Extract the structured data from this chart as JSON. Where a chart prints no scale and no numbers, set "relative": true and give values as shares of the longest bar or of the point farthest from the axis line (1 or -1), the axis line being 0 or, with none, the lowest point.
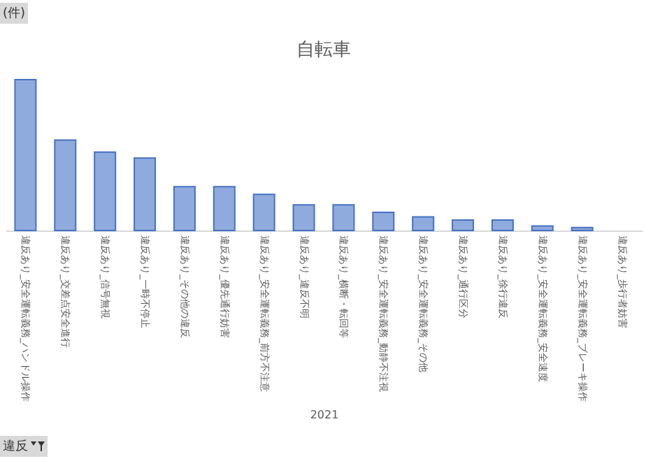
{
  "chart_data": {
    "type": "bar",
    "title": "自転車",
    "xlabel": "2021",
    "ylabel": "(件)",
    "annotations": [
      "違反"
    ],
    "relative": true,
    "categories": [
      "違反あり_安全運転義務_ハンドル操作",
      "違反あり_交差点安全進行",
      "違反あり_信号無視",
      "違反あり_一時不停止",
      "違反あり_その他の違反",
      "違反あり_優先通行妨害",
      "違反あり_安全運転義務_前方不注意",
      "違反あり_違反不明",
      "違反あり_横断・転回等",
      "違反あり_安全運転義務_動静不注視",
      "違反あり_安全運転義務_その他",
      "違反あり_通行区分",
      "違反あり_徐行違反",
      "違反あり_安全運転義務_安全速度",
      "違反あり_安全運転義務_ブレーキ操作",
      "違反あり_歩行者妨害"
    ],
    "values": [
      1,
      0.6,
      0.52,
      0.48,
      0.29,
      0.29,
      0.24,
      0.17,
      0.17,
      0.12,
      0.09,
      0.07,
      0.07,
      0.03,
      0.02,
      0
    ],
    "color": "#8faadc"
  }
}
